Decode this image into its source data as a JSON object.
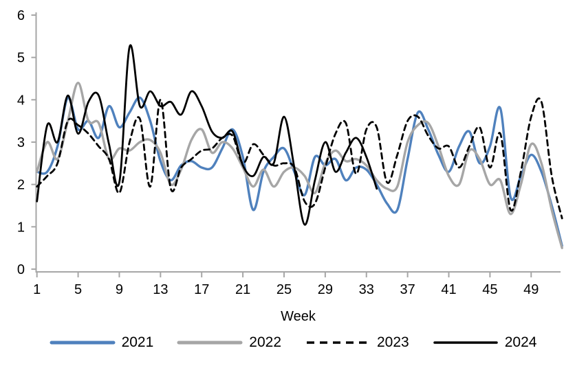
{
  "figure": {
    "xlabel": "Week"
  },
  "chart_data": {
    "type": "line",
    "title": "",
    "xlabel": "Week",
    "ylabel": "",
    "x_range": [
      1,
      52
    ],
    "ylim": [
      0,
      6
    ],
    "y_ticks": [
      0,
      1,
      2,
      3,
      4,
      5,
      6
    ],
    "x_ticks": [
      1,
      5,
      9,
      13,
      17,
      21,
      25,
      29,
      33,
      37,
      41,
      45,
      49
    ],
    "grid": false,
    "legend_position": "bottom",
    "axis_color": "#a6a6a6",
    "text_color": "#000000",
    "series": [
      {
        "name": "2021",
        "color": "#4f81bd",
        "style": "solid",
        "line_width": 3.4,
        "start_week": 1,
        "values": [
          2.3,
          2.3,
          2.9,
          4.05,
          3.3,
          3.5,
          3.1,
          3.85,
          3.35,
          3.7,
          4.05,
          3.5,
          2.55,
          2.1,
          2.45,
          2.55,
          2.4,
          2.4,
          2.85,
          3.3,
          2.65,
          1.4,
          2.3,
          2.65,
          2.85,
          2.3,
          1.75,
          2.65,
          2.45,
          2.6,
          2.1,
          2.4,
          2.35,
          2.0,
          1.55,
          1.4,
          2.6,
          3.7,
          3.3,
          2.7,
          2.3,
          2.9,
          3.25,
          2.5,
          2.9,
          3.8,
          1.7,
          2.2,
          2.7,
          2.3,
          1.5,
          0.55
        ]
      },
      {
        "name": "2022",
        "color": "#a6a6a6",
        "style": "solid",
        "line_width": 3.4,
        "start_week": 1,
        "values": [
          2.3,
          3.0,
          2.6,
          3.5,
          4.4,
          3.5,
          3.45,
          2.6,
          2.85,
          2.8,
          3.0,
          3.05,
          2.75,
          2.0,
          2.35,
          3.05,
          3.3,
          2.75,
          3.0,
          2.85,
          2.4,
          1.95,
          2.35,
          1.95,
          2.3,
          2.4,
          2.2,
          1.8,
          2.5,
          2.8,
          2.55,
          2.6,
          2.45,
          2.1,
          1.9,
          1.95,
          3.0,
          3.4,
          3.45,
          2.9,
          2.2,
          2.0,
          2.8,
          2.6,
          2.0,
          2.1,
          1.3,
          2.0,
          2.95,
          2.5,
          1.4,
          0.5
        ]
      },
      {
        "name": "2023",
        "color": "#000000",
        "style": "dashed",
        "line_width": 2.8,
        "start_week": 1,
        "values": [
          1.95,
          2.2,
          2.5,
          3.5,
          3.4,
          3.2,
          2.9,
          2.6,
          1.8,
          3.0,
          3.55,
          1.95,
          4.0,
          1.9,
          2.4,
          2.6,
          2.8,
          2.85,
          3.1,
          3.15,
          2.5,
          2.95,
          2.7,
          2.45,
          2.5,
          2.4,
          1.6,
          1.55,
          2.4,
          3.2,
          3.45,
          2.25,
          3.3,
          3.35,
          2.05,
          2.7,
          3.5,
          3.6,
          3.15,
          2.85,
          2.9,
          2.4,
          2.9,
          3.35,
          2.4,
          3.2,
          1.4,
          2.3,
          3.6,
          3.95,
          2.2,
          1.2
        ]
      },
      {
        "name": "2024",
        "color": "#000000",
        "style": "solid",
        "line_width": 2.8,
        "start_week": 1,
        "values": [
          1.6,
          3.4,
          3.0,
          4.1,
          3.2,
          3.95,
          4.1,
          2.95,
          2.05,
          5.25,
          3.85,
          4.2,
          3.85,
          3.95,
          3.65,
          4.2,
          3.85,
          3.25,
          3.1,
          3.25,
          2.45,
          2.2,
          2.65,
          2.5,
          3.6,
          2.4,
          1.05,
          2.1,
          3.0,
          2.3,
          2.75,
          3.1,
          2.65,
          1.9
        ]
      }
    ]
  }
}
